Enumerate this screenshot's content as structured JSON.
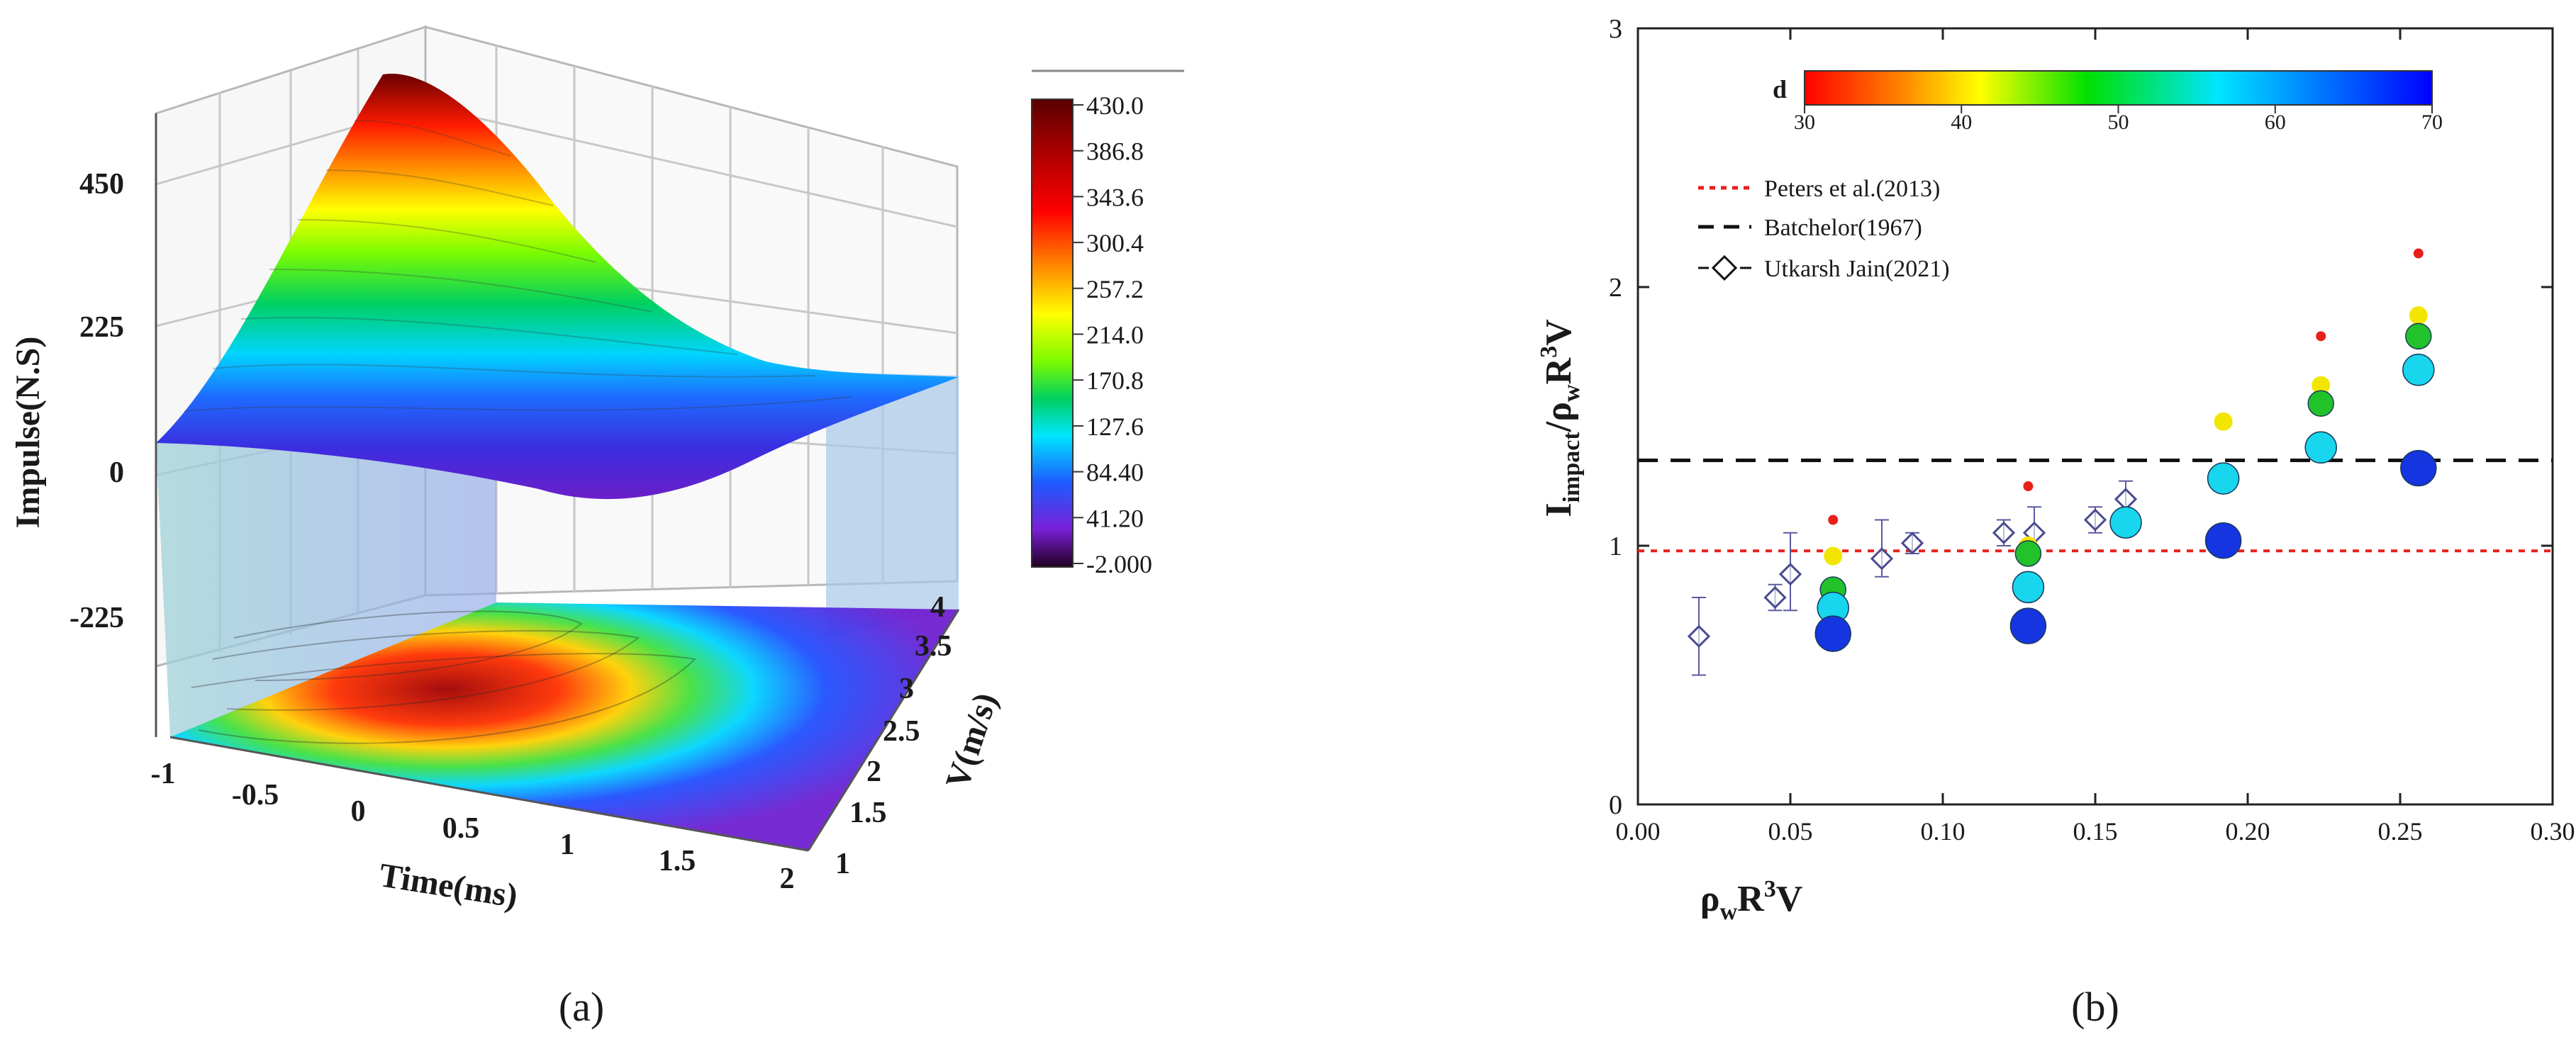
{
  "chart_data": [
    {
      "panel": "a",
      "type": "surface3d",
      "zlabel": "Impulse(N.S)",
      "xlabel": "Time(ms)",
      "ylabel": "V(m/s)",
      "z_ticks": [
        "450",
        "225",
        "0",
        "-225"
      ],
      "x_ticks": [
        "-1",
        "-0.5",
        "0",
        "0.5",
        "1",
        "1.5",
        "2"
      ],
      "y_ticks": [
        "1",
        "1.5",
        "2",
        "2.5",
        "3",
        "3.5",
        "4"
      ],
      "colorbar_ticks": [
        "430.0",
        "386.8",
        "343.6",
        "300.4",
        "257.2",
        "214.0",
        "170.8",
        "127.6",
        "84.40",
        "41.20",
        "-2.000"
      ],
      "colorbar_colors": [
        "#5a0000",
        "#b00000",
        "#ff0000",
        "#ff8c00",
        "#ffff00",
        "#7cfc00",
        "#00d060",
        "#00e5ff",
        "#1e5bff",
        "#7a1fd6",
        "#200020"
      ]
    },
    {
      "panel": "b",
      "type": "scatter",
      "xlabel_main": "ρ",
      "xlabel_sub1": "w",
      "xlabel_mid": "R",
      "xlabel_sup": "3",
      "xlabel_end": "V",
      "ylabel_main": "I",
      "ylabel_sub1": "impact",
      "ylabel_mid": "/ρ",
      "ylabel_sub2": "w",
      "ylabel_mid2": "R",
      "ylabel_sup": "3",
      "ylabel_end": "V",
      "xlim": [
        0.0,
        0.3
      ],
      "ylim": [
        0,
        3
      ],
      "x_ticks": [
        0.0,
        0.05,
        0.1,
        0.15,
        0.2,
        0.25,
        0.3
      ],
      "x_tick_labels": [
        "0.00",
        "0.05",
        "0.10",
        "0.15",
        "0.20",
        "0.25",
        "0.30"
      ],
      "y_ticks": [
        0,
        1,
        2,
        3
      ],
      "y_tick_labels": [
        "0",
        "1",
        "2",
        "3"
      ],
      "colorbar": {
        "label": "d",
        "min": 30,
        "max": 70,
        "ticks": [
          "30",
          "40",
          "50",
          "60",
          "70"
        ],
        "colors": [
          "#ff0000",
          "#ff8000",
          "#ffff00",
          "#00e000",
          "#00e5ff",
          "#0000ff"
        ]
      },
      "legend": [
        "Peters et al.(2013)",
        "Batchelor(1967)",
        "Utkarsh Jain(2021)"
      ],
      "reference_lines": [
        {
          "name": "Peters et al.(2013)",
          "y": 0.98,
          "color": "#e8201a",
          "style": "dotted"
        },
        {
          "name": "Batchelor(1967)",
          "y": 1.33,
          "color": "#111111",
          "style": "dashed"
        }
      ],
      "points": [
        {
          "x": 0.064,
          "y": 1.1,
          "d": 30
        },
        {
          "x": 0.064,
          "y": 0.96,
          "d": 40
        },
        {
          "x": 0.064,
          "y": 0.83,
          "d": 50
        },
        {
          "x": 0.064,
          "y": 0.76,
          "d": 60
        },
        {
          "x": 0.064,
          "y": 0.66,
          "d": 70
        },
        {
          "x": 0.128,
          "y": 1.23,
          "d": 30
        },
        {
          "x": 0.128,
          "y": 1.0,
          "d": 40
        },
        {
          "x": 0.128,
          "y": 0.97,
          "d": 50
        },
        {
          "x": 0.128,
          "y": 0.84,
          "d": 60
        },
        {
          "x": 0.128,
          "y": 0.69,
          "d": 70
        },
        {
          "x": 0.192,
          "y": 1.48,
          "d": 40
        },
        {
          "x": 0.192,
          "y": 1.26,
          "d": 60
        },
        {
          "x": 0.192,
          "y": 1.02,
          "d": 70
        },
        {
          "x": 0.16,
          "y": 1.09,
          "d": 60
        },
        {
          "x": 0.224,
          "y": 1.81,
          "d": 30
        },
        {
          "x": 0.224,
          "y": 1.62,
          "d": 40
        },
        {
          "x": 0.224,
          "y": 1.55,
          "d": 50
        },
        {
          "x": 0.224,
          "y": 1.38,
          "d": 60
        },
        {
          "x": 0.256,
          "y": 2.13,
          "d": 30
        },
        {
          "x": 0.256,
          "y": 1.89,
          "d": 40
        },
        {
          "x": 0.256,
          "y": 1.81,
          "d": 50
        },
        {
          "x": 0.256,
          "y": 1.68,
          "d": 60
        },
        {
          "x": 0.256,
          "y": 1.3,
          "d": 70
        }
      ],
      "utkarsh": [
        {
          "x": 0.02,
          "y": 0.65,
          "lo": 0.5,
          "hi": 0.8
        },
        {
          "x": 0.045,
          "y": 0.8,
          "lo": 0.75,
          "hi": 0.85
        },
        {
          "x": 0.05,
          "y": 0.89,
          "lo": 0.75,
          "hi": 1.05
        },
        {
          "x": 0.08,
          "y": 0.95,
          "lo": 0.88,
          "hi": 1.1
        },
        {
          "x": 0.09,
          "y": 1.01,
          "lo": 0.97,
          "hi": 1.05
        },
        {
          "x": 0.12,
          "y": 1.05,
          "lo": 1.0,
          "hi": 1.1
        },
        {
          "x": 0.13,
          "y": 1.05,
          "lo": 0.97,
          "hi": 1.15
        },
        {
          "x": 0.15,
          "y": 1.1,
          "lo": 1.05,
          "hi": 1.15
        },
        {
          "x": 0.16,
          "y": 1.18,
          "lo": 1.1,
          "hi": 1.25
        }
      ]
    }
  ],
  "captions": {
    "a": "(a)",
    "b": "(b)"
  }
}
